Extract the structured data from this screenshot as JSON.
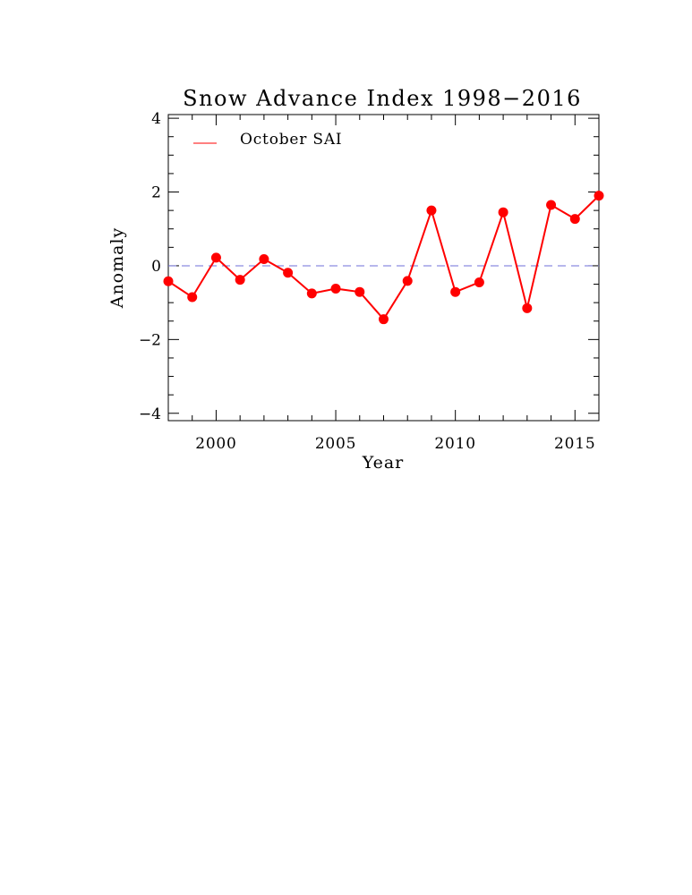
{
  "chart_data": {
    "type": "line",
    "title": "Snow Advance Index 1998−2016",
    "xlabel": "Year",
    "ylabel": "Anomaly",
    "xlim": [
      1998,
      2016
    ],
    "ylim": [
      -4.2,
      4.1
    ],
    "x_ticks": [
      2000,
      2005,
      2010,
      2015
    ],
    "x_tick_labels": [
      "2000",
      "2005",
      "2010",
      "2015"
    ],
    "y_ticks": [
      -4,
      -2,
      0,
      2,
      4
    ],
    "y_tick_labels": [
      "−4",
      "−2",
      "0",
      "2",
      "4"
    ],
    "legend": {
      "position": "top-left",
      "entries": [
        "October SAI"
      ]
    },
    "reference_line": {
      "y": 0,
      "style": "dashed",
      "color": "#6f6fd8"
    },
    "colors": {
      "series": "#ff0000",
      "axes": "#000000"
    },
    "grid": false,
    "series": [
      {
        "name": "October SAI",
        "x": [
          1998,
          1999,
          2000,
          2001,
          2002,
          2003,
          2004,
          2005,
          2006,
          2007,
          2008,
          2009,
          2010,
          2011,
          2012,
          2013,
          2014,
          2015,
          2016
        ],
        "values": [
          -0.42,
          -0.85,
          0.22,
          -0.38,
          0.18,
          -0.19,
          -0.75,
          -0.62,
          -0.71,
          -1.45,
          -0.41,
          1.5,
          -0.71,
          -0.45,
          1.45,
          -1.15,
          1.65,
          1.27,
          1.9
        ]
      }
    ]
  }
}
